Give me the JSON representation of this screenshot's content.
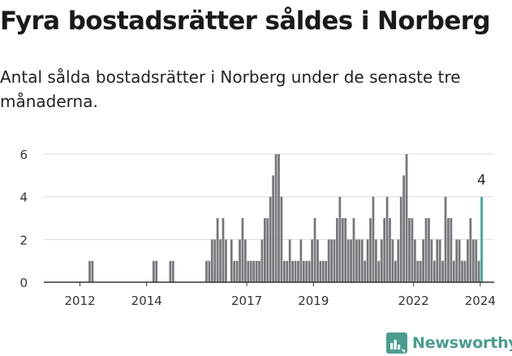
{
  "header": {
    "title": "Fyra bostadsrätter såldes i Norberg",
    "subtitle": "Antal sålda bostadsrätter i Norberg under de senaste tre månaderna."
  },
  "brand": {
    "name": "Newsworthy",
    "color": "#4a9d8f",
    "logo_icon": "bar-chart-logo-icon"
  },
  "colors": {
    "bar": "#76767b",
    "highlight": "#2a9d8f",
    "grid": "#dddddd",
    "axis": "#333333"
  },
  "chart_data": {
    "type": "bar",
    "title": "Fyra bostadsrätter såldes i Norberg",
    "subtitle": "Antal sålda bostadsrätter i Norberg under de senaste tre månaderna.",
    "xlabel": "",
    "ylabel": "",
    "ylim": [
      0,
      6
    ],
    "y_ticks": [
      0,
      2,
      4,
      6
    ],
    "x_ticks": [
      "2012",
      "2014",
      "2017",
      "2019",
      "2022",
      "2024"
    ],
    "x_range": [
      "2011-06",
      "2024-12"
    ],
    "grid": true,
    "highlight_label": "4",
    "series": [
      {
        "name": "",
        "x": [
          "2012-10",
          "2012-11",
          "2014-09",
          "2014-10",
          "2015-03",
          "2015-04",
          "2016-04",
          "2016-05",
          "2016-06",
          "2016-07",
          "2016-08",
          "2016-09",
          "2016-10",
          "2016-11",
          "2017-01",
          "2017-02",
          "2017-03",
          "2017-04",
          "2017-05",
          "2017-06",
          "2017-07",
          "2017-08",
          "2017-09",
          "2017-10",
          "2017-11",
          "2017-12",
          "2018-01",
          "2018-02",
          "2018-03",
          "2018-04",
          "2018-05",
          "2018-06",
          "2018-07",
          "2018-08",
          "2018-09",
          "2018-10",
          "2018-11",
          "2018-12",
          "2019-01",
          "2019-02",
          "2019-03",
          "2019-04",
          "2019-05",
          "2019-06",
          "2019-07",
          "2019-08",
          "2019-09",
          "2019-10",
          "2019-11",
          "2019-12",
          "2020-01",
          "2020-02",
          "2020-03",
          "2020-04",
          "2020-05",
          "2020-06",
          "2020-07",
          "2020-08",
          "2020-09",
          "2020-10",
          "2020-11",
          "2020-12",
          "2021-01",
          "2021-02",
          "2021-03",
          "2021-04",
          "2021-05",
          "2021-06",
          "2021-07",
          "2021-08",
          "2021-09",
          "2021-10",
          "2021-11",
          "2021-12",
          "2022-01",
          "2022-02",
          "2022-03",
          "2022-04",
          "2022-05",
          "2022-06",
          "2022-07",
          "2022-08",
          "2022-09",
          "2022-10",
          "2022-11",
          "2022-12",
          "2023-01",
          "2023-02",
          "2023-03",
          "2023-04",
          "2023-05",
          "2023-06",
          "2023-07",
          "2023-08",
          "2023-09",
          "2023-10",
          "2023-11",
          "2023-12",
          "2024-01",
          "2024-02",
          "2024-03",
          "2024-04",
          "2024-05",
          "2024-06",
          "2024-07"
        ],
        "values": [
          1,
          1,
          1,
          1,
          1,
          1,
          1,
          1,
          2,
          2,
          3,
          2,
          3,
          2,
          2,
          1,
          1,
          2,
          3,
          2,
          1,
          1,
          1,
          1,
          1,
          2,
          3,
          3,
          4,
          5,
          6,
          6,
          4,
          1,
          1,
          2,
          1,
          1,
          1,
          2,
          1,
          1,
          1,
          2,
          3,
          2,
          1,
          1,
          1,
          2,
          2,
          2,
          3,
          4,
          3,
          3,
          2,
          2,
          3,
          2,
          2,
          2,
          1,
          2,
          3,
          4,
          2,
          1,
          2,
          3,
          4,
          3,
          2,
          1,
          2,
          4,
          5,
          6,
          3,
          3,
          2,
          1,
          1,
          2,
          3,
          3,
          2,
          1,
          2,
          2,
          1,
          4,
          3,
          3,
          1,
          2,
          2,
          1,
          1,
          2,
          3,
          2,
          2,
          1,
          4
        ],
        "highlight_last": true
      }
    ]
  }
}
